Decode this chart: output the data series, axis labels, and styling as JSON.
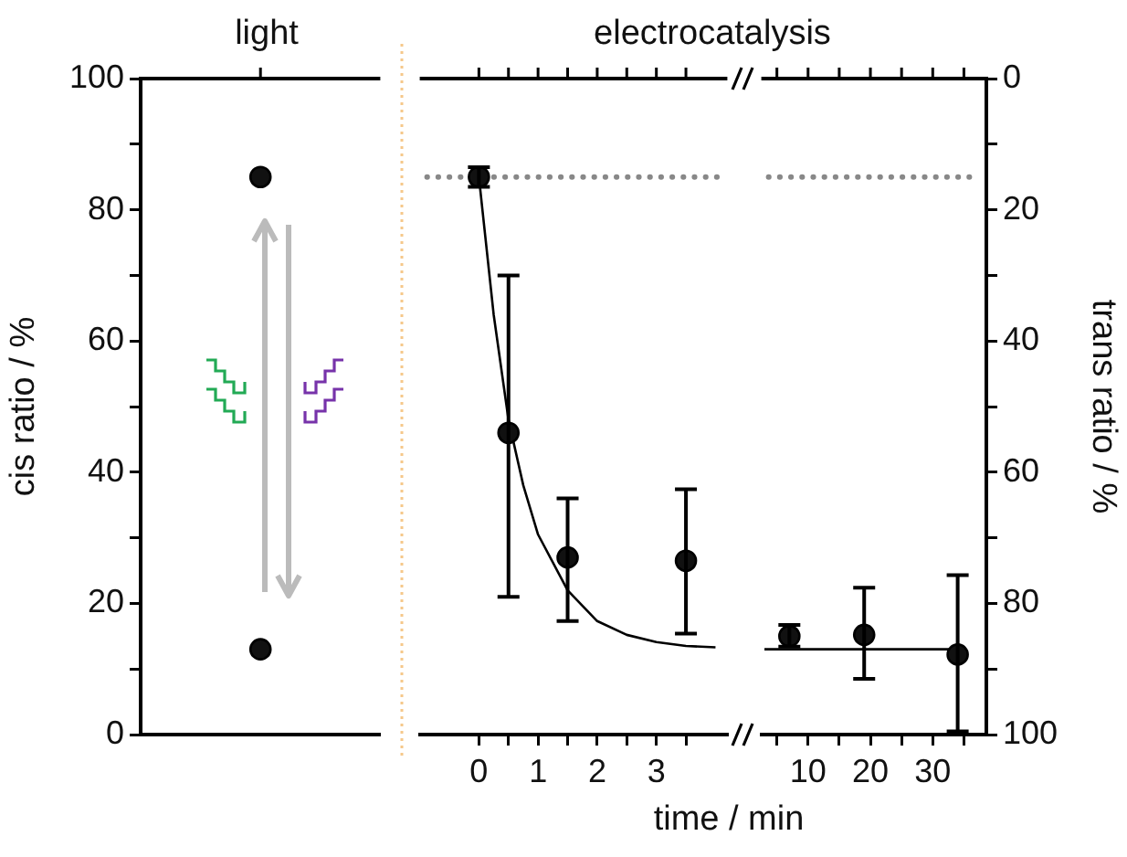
{
  "chart_data": [
    {
      "type": "scatter",
      "title": "light",
      "ylabel": "cis ratio / %",
      "categories": [
        null
      ],
      "marker": "circle",
      "tick_labels": "y",
      "series": [
        {
          "color": "#111111",
          "values": [
            85
          ]
        },
        {
          "color": "#111111",
          "values": [
            13
          ]
        }
      ],
      "ylim": [
        0,
        100
      ],
      "yticks": [
        0,
        {
          "value": 10,
          "label": null
        },
        20,
        {
          "value": 30,
          "label": null
        },
        40,
        {
          "value": 50,
          "label": null
        },
        60,
        {
          "value": 70,
          "label": null
        },
        80,
        {
          "value": 90,
          "label": null
        },
        100
      ]
    },
    {
      "type": "scatter",
      "title": "electrocatalysis",
      "xlabel": "time / min",
      "marker": "circle",
      "tick_labels": "x",
      "xlim": [
        -1,
        4.2
      ],
      "xticks": [
        0,
        {
          "value": 0.5,
          "label": null
        },
        1,
        {
          "value": 1.5,
          "label": null
        },
        2,
        {
          "value": 2.5,
          "label": null
        },
        3,
        {
          "value": 3.5,
          "label": null
        }
      ],
      "ylim": [
        0,
        100
      ],
      "series": [
        {
          "color": "#111111",
          "x": [
            0,
            0.5,
            1.5,
            3.5
          ],
          "values": [
            85,
            46,
            27,
            26.5
          ],
          "errors": [
            1.5,
            [
              21,
              70
            ],
            [
              17.3,
              36
            ],
            [
              15.4,
              37.4
            ]
          ]
        },
        {
          "type": "line",
          "marker": "none",
          "color": "#000000",
          "x": [
            0,
            0.25,
            0.5,
            0.75,
            1,
            1.5,
            2,
            2.5,
            3,
            3.5,
            4
          ],
          "values": [
            85,
            64,
            48,
            38,
            30.5,
            22,
            17.3,
            15.2,
            14.1,
            13.5,
            13.3
          ]
        }
      ],
      "ref_lines": [
        {
          "axis": "y",
          "value": 85,
          "color": "#888888",
          "line_style": "dotted"
        }
      ]
    },
    {
      "type": "scatter",
      "marker": "circle",
      "y2label": "trans ratio / %",
      "xlim": [
        2.5,
        38.6
      ],
      "xticks": [
        {
          "value": 5,
          "label": null
        },
        10,
        {
          "value": 15,
          "label": null
        },
        20,
        {
          "value": 25,
          "label": null
        },
        30,
        {
          "value": 35,
          "label": null
        }
      ],
      "ylim": [
        0,
        100
      ],
      "y2lim": [
        100,
        0
      ],
      "y2ticks": [
        0,
        {
          "value": 10,
          "label": null
        },
        20,
        {
          "value": 30,
          "label": null
        },
        40,
        {
          "value": 50,
          "label": null
        },
        60,
        {
          "value": 70,
          "label": null
        },
        80,
        {
          "value": 90,
          "label": null
        },
        100
      ],
      "series": [
        {
          "color": "#111111",
          "x": [
            7,
            19,
            34
          ],
          "values": [
            15,
            15.2,
            12.2
          ],
          "errors": [
            [
              13.4,
              16.7
            ],
            [
              8.5,
              22.4
            ],
            [
              0.5,
              24.3
            ]
          ]
        },
        {
          "type": "line",
          "marker": "none",
          "color": "#000000",
          "x": [
            3,
            34
          ],
          "values": [
            13,
            13
          ]
        }
      ],
      "ref_lines": [
        {
          "axis": "y",
          "value": 85,
          "color": "#888888",
          "line_style": "dotted"
        }
      ]
    }
  ]
}
